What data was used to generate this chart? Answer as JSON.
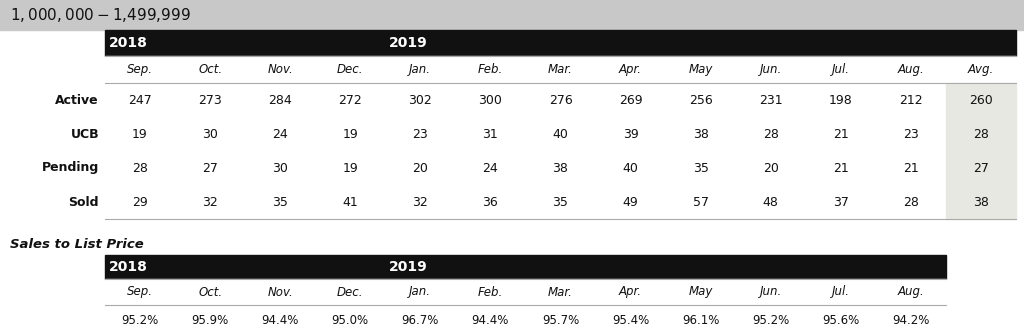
{
  "title": "$1,000,000 - $1,499,999",
  "title_bg": "#c8c8c8",
  "header_bg": "#111111",
  "avg_col_bg": "#e8e8e2",
  "year_headers": [
    "2018",
    "2019"
  ],
  "month_cols": [
    "Sep.",
    "Oct.",
    "Nov.",
    "Dec.",
    "Jan.",
    "Feb.",
    "Mar.",
    "Apr.",
    "May",
    "Jun.",
    "Jul.",
    "Aug.",
    "Avg."
  ],
  "row_labels": [
    "Active",
    "UCB",
    "Pending",
    "Sold"
  ],
  "table_data": [
    [
      247,
      273,
      284,
      272,
      302,
      300,
      276,
      269,
      256,
      231,
      198,
      212,
      260
    ],
    [
      19,
      30,
      24,
      19,
      23,
      31,
      40,
      39,
      38,
      28,
      21,
      23,
      28
    ],
    [
      28,
      27,
      30,
      19,
      20,
      24,
      38,
      40,
      35,
      20,
      21,
      21,
      27
    ],
    [
      29,
      32,
      35,
      41,
      32,
      36,
      35,
      49,
      57,
      48,
      37,
      28,
      38
    ]
  ],
  "sales_title": "Sales to List Price",
  "sales_month_cols": [
    "Sep.",
    "Oct.",
    "Nov.",
    "Dec.",
    "Jan.",
    "Feb.",
    "Mar.",
    "Apr.",
    "May",
    "Jun.",
    "Jul.",
    "Aug."
  ],
  "sales_data": [
    "95.2%",
    "95.9%",
    "94.4%",
    "95.0%",
    "96.7%",
    "94.4%",
    "95.7%",
    "95.4%",
    "96.1%",
    "95.2%",
    "95.6%",
    "94.2%"
  ]
}
